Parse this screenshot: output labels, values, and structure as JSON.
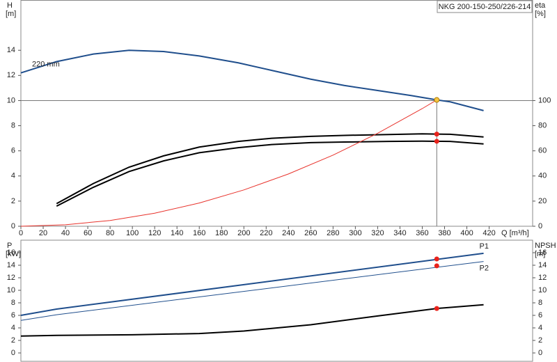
{
  "title": "NKG 200-150-250/226-214",
  "chart_data": [
    {
      "type": "line",
      "y_label": "H",
      "y_unit": "[m]",
      "y2_label": "eta",
      "y2_unit": "[%]",
      "x_label": "Q [m³/h]",
      "xlim": [
        0,
        459
      ],
      "xticks": [
        0,
        20,
        40,
        60,
        80,
        100,
        120,
        140,
        160,
        180,
        200,
        220,
        240,
        260,
        280,
        300,
        320,
        340,
        360,
        380,
        400,
        420
      ],
      "ylim": [
        0,
        18
      ],
      "yticks": [
        0,
        2,
        4,
        6,
        8,
        10,
        12,
        14
      ],
      "y2lim": [
        0,
        180
      ],
      "y2ticks": [
        0,
        20,
        40,
        60,
        80,
        100
      ],
      "reference_lines": {
        "x": 373,
        "y": 10
      },
      "series": [
        {
          "name": "220 mm",
          "color": "#1f4e8c",
          "line_style": "thick",
          "label_at": "start",
          "x": [
            0,
            32,
            65,
            97,
            128,
            160,
            195,
            225,
            260,
            290,
            320,
            350,
            373,
            385,
            415
          ],
          "values": [
            12.2,
            13.1,
            13.7,
            14.0,
            13.9,
            13.55,
            13.0,
            12.4,
            11.7,
            11.2,
            10.8,
            10.4,
            10.05,
            9.9,
            9.2
          ]
        },
        {
          "color": "#000000",
          "line_style": "thick",
          "axis": "y2",
          "x": [
            32,
            65,
            97,
            128,
            160,
            195,
            225,
            260,
            290,
            330,
            360,
            373,
            385,
            415
          ],
          "values": [
            18,
            34,
            47,
            56,
            63,
            67.5,
            70,
            71.5,
            72.3,
            73,
            73.5,
            73.3,
            73.2,
            71
          ]
        },
        {
          "color": "#000000",
          "line_style": "thick",
          "axis": "y2",
          "x": [
            32,
            65,
            97,
            128,
            160,
            195,
            225,
            260,
            290,
            330,
            360,
            373,
            385,
            415
          ],
          "values": [
            16,
            31,
            43.5,
            52,
            58.5,
            62.5,
            65,
            66.5,
            67,
            67.5,
            67.7,
            67.6,
            67.5,
            65.5
          ]
        },
        {
          "color": "#e8322b",
          "line_style": "thin",
          "x": [
            0,
            40,
            80,
            120,
            160,
            200,
            240,
            280,
            320,
            360,
            373
          ],
          "values": [
            0,
            0.12,
            0.46,
            1.04,
            1.85,
            2.89,
            4.16,
            5.66,
            7.4,
            9.36,
            10.05
          ]
        }
      ],
      "points": [
        {
          "x": 373,
          "y": 10.05,
          "axis": "y",
          "color": "#f5c542"
        },
        {
          "x": 373,
          "y": 73.3,
          "axis": "y2",
          "color": "#e8221b"
        },
        {
          "x": 373,
          "y": 67.6,
          "axis": "y2",
          "color": "#e8221b"
        }
      ]
    },
    {
      "type": "line",
      "y_label": "P",
      "y_unit": "[kW]",
      "y2_label": "NPSH",
      "y2_unit": "[m]",
      "xlim": [
        0,
        459
      ],
      "ylim": [
        0,
        18
      ],
      "yticks": [
        0,
        2,
        4,
        6,
        8,
        10,
        12,
        14,
        16
      ],
      "y2lim": [
        0,
        18
      ],
      "y2ticks": [
        0,
        2,
        4,
        6,
        8,
        10,
        12,
        14,
        16
      ],
      "series": [
        {
          "name": "P1",
          "color": "#1f4e8c",
          "line_style": "thick",
          "label_at": "end",
          "x": [
            0,
            32,
            415
          ],
          "values": [
            6.0,
            7.0,
            15.9
          ]
        },
        {
          "name": "P2",
          "color": "#1f4e8c",
          "line_style": "thin",
          "label_at": "end",
          "x": [
            0,
            32,
            415
          ],
          "values": [
            5.2,
            6.1,
            14.6
          ]
        },
        {
          "color": "#000000",
          "line_style": "thick",
          "axis": "y2",
          "x": [
            0,
            32,
            100,
            160,
            200,
            260,
            320,
            373,
            415
          ],
          "values": [
            2.7,
            2.8,
            2.9,
            3.1,
            3.5,
            4.5,
            5.9,
            7.1,
            7.7
          ]
        }
      ],
      "points": [
        {
          "x": 373,
          "y": 15.0,
          "axis": "y",
          "color": "#e8221b"
        },
        {
          "x": 373,
          "y": 13.9,
          "axis": "y",
          "color": "#e8221b"
        },
        {
          "x": 373,
          "y": 7.1,
          "axis": "y2",
          "color": "#e8221b"
        }
      ]
    }
  ]
}
